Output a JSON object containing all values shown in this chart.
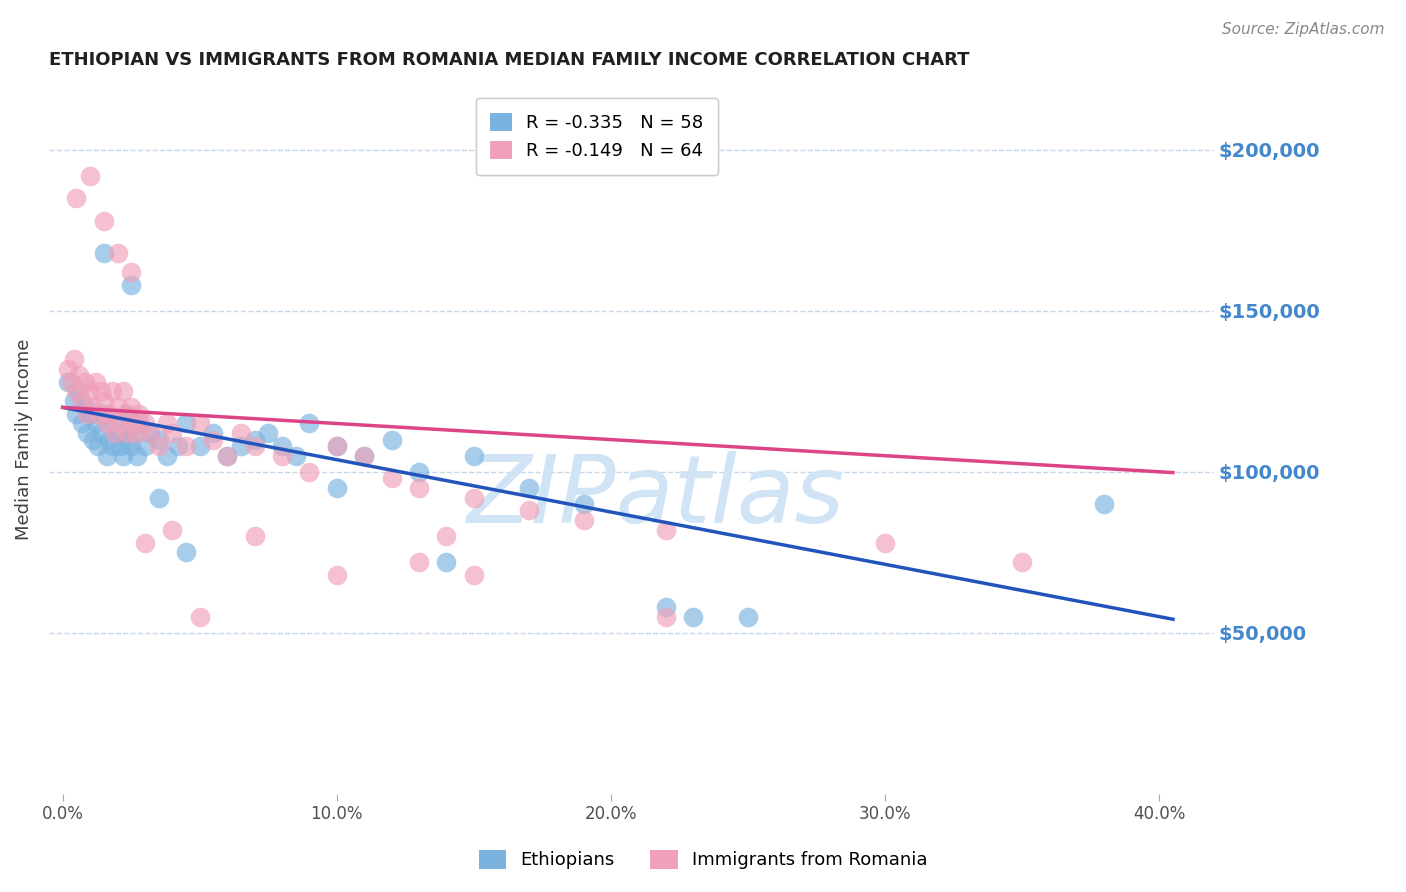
{
  "title": "ETHIOPIAN VS IMMIGRANTS FROM ROMANIA MEDIAN FAMILY INCOME CORRELATION CHART",
  "source": "Source: ZipAtlas.com",
  "ylabel": "Median Family Income",
  "xlabel_ticks": [
    "0.0%",
    "10.0%",
    "20.0%",
    "30.0%",
    "40.0%"
  ],
  "xlabel_tick_vals": [
    0.0,
    0.1,
    0.2,
    0.3,
    0.4
  ],
  "ylabel_ticks": [
    0,
    50000,
    100000,
    150000,
    200000
  ],
  "ylabel_tick_labels": [
    "",
    "$50,000",
    "$100,000",
    "$150,000",
    "$200,000"
  ],
  "ylim": [
    0,
    220000
  ],
  "xlim": [
    -0.005,
    0.42
  ],
  "legend_entries": [
    {
      "label": "R = -0.335   N = 58",
      "color": "#a8c8f0"
    },
    {
      "label": "R = -0.149   N = 64",
      "color": "#f0a8c0"
    }
  ],
  "legend_labels_bottom": [
    "Ethiopians",
    "Immigrants from Romania"
  ],
  "blue_color": "#7ab3e0",
  "pink_color": "#f0a0b8",
  "blue_line_color": "#2255bb",
  "pink_line_color": "#dd4488",
  "watermark_color": "#d0e4f5",
  "background_color": "#ffffff",
  "grid_color": "#c8d8e8",
  "title_color": "#202020",
  "right_tick_color": "#4488cc",
  "ethiopians_x": [
    0.002,
    0.004,
    0.005,
    0.006,
    0.007,
    0.008,
    0.009,
    0.01,
    0.011,
    0.012,
    0.013,
    0.014,
    0.015,
    0.016,
    0.017,
    0.018,
    0.019,
    0.02,
    0.021,
    0.022,
    0.023,
    0.024,
    0.025,
    0.026,
    0.027,
    0.028,
    0.03,
    0.032,
    0.035,
    0.038,
    0.042,
    0.045,
    0.05,
    0.055,
    0.06,
    0.065,
    0.07,
    0.075,
    0.08,
    0.085,
    0.09,
    0.1,
    0.11,
    0.12,
    0.13,
    0.15,
    0.17,
    0.19,
    0.22,
    0.25,
    0.015,
    0.025,
    0.035,
    0.045,
    0.38,
    0.1,
    0.14,
    0.23
  ],
  "ethiopians_y": [
    128000,
    122000,
    118000,
    125000,
    115000,
    120000,
    112000,
    118000,
    110000,
    115000,
    108000,
    112000,
    118000,
    105000,
    110000,
    108000,
    115000,
    112000,
    108000,
    105000,
    118000,
    110000,
    108000,
    112000,
    105000,
    115000,
    108000,
    112000,
    110000,
    105000,
    108000,
    115000,
    108000,
    112000,
    105000,
    108000,
    110000,
    112000,
    108000,
    105000,
    115000,
    108000,
    105000,
    110000,
    100000,
    105000,
    95000,
    90000,
    58000,
    55000,
    168000,
    158000,
    92000,
    75000,
    90000,
    95000,
    72000,
    55000
  ],
  "romania_x": [
    0.002,
    0.003,
    0.004,
    0.005,
    0.006,
    0.007,
    0.008,
    0.009,
    0.01,
    0.011,
    0.012,
    0.013,
    0.014,
    0.015,
    0.016,
    0.017,
    0.018,
    0.019,
    0.02,
    0.021,
    0.022,
    0.023,
    0.024,
    0.025,
    0.026,
    0.027,
    0.028,
    0.03,
    0.032,
    0.035,
    0.038,
    0.04,
    0.045,
    0.05,
    0.055,
    0.06,
    0.065,
    0.07,
    0.08,
    0.09,
    0.1,
    0.11,
    0.12,
    0.13,
    0.15,
    0.17,
    0.19,
    0.22,
    0.3,
    0.35,
    0.005,
    0.01,
    0.015,
    0.02,
    0.025,
    0.03,
    0.04,
    0.05,
    0.07,
    0.1,
    0.13,
    0.14,
    0.15,
    0.22
  ],
  "romania_y": [
    132000,
    128000,
    135000,
    125000,
    130000,
    122000,
    128000,
    118000,
    125000,
    120000,
    128000,
    118000,
    125000,
    122000,
    115000,
    118000,
    125000,
    112000,
    120000,
    115000,
    125000,
    118000,
    112000,
    120000,
    115000,
    112000,
    118000,
    115000,
    112000,
    108000,
    115000,
    112000,
    108000,
    115000,
    110000,
    105000,
    112000,
    108000,
    105000,
    100000,
    108000,
    105000,
    98000,
    95000,
    92000,
    88000,
    85000,
    82000,
    78000,
    72000,
    185000,
    192000,
    178000,
    168000,
    162000,
    78000,
    82000,
    55000,
    80000,
    68000,
    72000,
    80000,
    68000,
    55000
  ]
}
